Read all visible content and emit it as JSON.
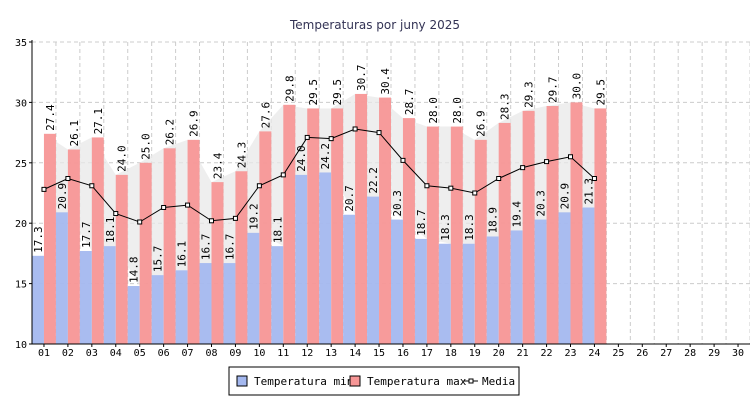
{
  "chart_data": {
    "type": "bar",
    "title": "Temperaturas por juny 2025",
    "xlabel": "",
    "ylabel": "",
    "ylim": [
      10,
      35
    ],
    "yticks": [
      10,
      15,
      20,
      25,
      30,
      35
    ],
    "grid": true,
    "legend_position": "bottom",
    "categories": [
      "01",
      "02",
      "03",
      "04",
      "05",
      "06",
      "07",
      "08",
      "09",
      "10",
      "11",
      "12",
      "13",
      "14",
      "15",
      "16",
      "17",
      "18",
      "19",
      "20",
      "21",
      "22",
      "23",
      "24",
      "25",
      "26",
      "27",
      "28",
      "29",
      "30"
    ],
    "series": [
      {
        "name": "Temperatura min",
        "kind": "bar",
        "color": "#a4b8ef",
        "values": [
          17.3,
          20.9,
          17.7,
          18.1,
          14.8,
          15.7,
          16.1,
          16.7,
          16.7,
          19.2,
          18.1,
          24.0,
          24.2,
          20.7,
          22.2,
          20.3,
          18.7,
          18.3,
          18.3,
          18.9,
          19.4,
          20.3,
          20.9,
          21.3,
          null,
          null,
          null,
          null,
          null,
          null
        ]
      },
      {
        "name": "Temperatura max",
        "kind": "bar",
        "color": "#f79696",
        "values": [
          27.4,
          26.1,
          27.1,
          24.0,
          25.0,
          26.2,
          26.9,
          23.4,
          24.3,
          27.6,
          29.8,
          29.5,
          29.5,
          30.7,
          30.4,
          28.7,
          28.0,
          28.0,
          26.9,
          28.3,
          29.3,
          29.7,
          30.0,
          29.5,
          null,
          null,
          null,
          null,
          null,
          null
        ]
      },
      {
        "name": "Media",
        "kind": "line",
        "color": "#000000",
        "values": [
          22.8,
          23.7,
          23.1,
          20.8,
          20.1,
          21.3,
          21.5,
          20.2,
          20.4,
          23.1,
          24.0,
          27.1,
          27.0,
          27.8,
          27.5,
          25.2,
          23.1,
          22.9,
          22.5,
          23.7,
          24.6,
          25.1,
          25.5,
          23.7,
          null,
          null,
          null,
          null,
          null,
          null
        ]
      }
    ]
  }
}
